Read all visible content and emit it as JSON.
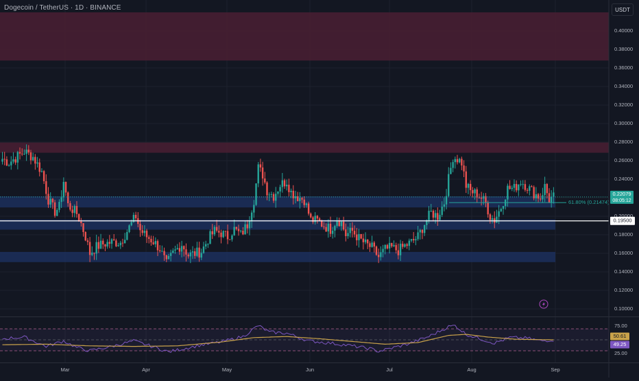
{
  "header": {
    "title": "Dogecoin / TetherUS · 1D · BINANCE",
    "currency": "USDT"
  },
  "colors": {
    "background": "#131722",
    "up": "#26a69a",
    "down": "#ef5350",
    "resistance_zone": "#4a1f32",
    "support_zone": "#1c2d59",
    "rsi_line": "#7e57c2",
    "rsi_ma": "#c9a24a",
    "fib": "#26a69a"
  },
  "chart_data": [
    {
      "type": "candlestick",
      "title": "Dogecoin / TetherUS · 1D · BINANCE",
      "y_ticks": [
        "0.40000",
        "0.38000",
        "0.36000",
        "0.34000",
        "0.32000",
        "0.30000",
        "0.28000",
        "0.26000",
        "0.24000",
        "0.22000",
        "0.20000",
        "0.18000",
        "0.16000",
        "0.14000",
        "0.12000",
        "0.10000"
      ],
      "x_ticks": [
        "Mar",
        "Apr",
        "May",
        "Jun",
        "Jul",
        "Aug",
        "Sep"
      ],
      "ylim": [
        0.09,
        0.42
      ],
      "grid": true,
      "current_price": {
        "value": "0.22079",
        "countdown": "08:05:12"
      },
      "horizontal_line": {
        "value": "0.19500"
      },
      "fib_label": "61.80% (0.21474)",
      "zones": [
        {
          "kind": "resistance",
          "from": 0.368,
          "to": 0.42
        },
        {
          "kind": "resistance",
          "from": 0.2685,
          "to": 0.2795
        },
        {
          "kind": "support",
          "from": 0.2095,
          "to": 0.2215
        },
        {
          "kind": "support",
          "from": 0.1855,
          "to": 0.1965
        },
        {
          "kind": "support",
          "from": 0.1505,
          "to": 0.1615
        }
      ],
      "price_anchors": [
        [
          0,
          0.262
        ],
        [
          3,
          0.258
        ],
        [
          6,
          0.263
        ],
        [
          10,
          0.27
        ],
        [
          14,
          0.264
        ],
        [
          18,
          0.248
        ],
        [
          21,
          0.218
        ],
        [
          24,
          0.205
        ],
        [
          26,
          0.21
        ],
        [
          28,
          0.238
        ],
        [
          30,
          0.212
        ],
        [
          34,
          0.203
        ],
        [
          36,
          0.192
        ],
        [
          38,
          0.178
        ],
        [
          40,
          0.16
        ],
        [
          43,
          0.167
        ],
        [
          46,
          0.17
        ],
        [
          50,
          0.172
        ],
        [
          54,
          0.172
        ],
        [
          58,
          0.188
        ],
        [
          61,
          0.2
        ],
        [
          63,
          0.185
        ],
        [
          66,
          0.178
        ],
        [
          69,
          0.173
        ],
        [
          72,
          0.165
        ],
        [
          75,
          0.148
        ],
        [
          78,
          0.16
        ],
        [
          82,
          0.17
        ],
        [
          85,
          0.158
        ],
        [
          88,
          0.16
        ],
        [
          91,
          0.162
        ],
        [
          94,
          0.175
        ],
        [
          97,
          0.184
        ],
        [
          100,
          0.182
        ],
        [
          103,
          0.178
        ],
        [
          106,
          0.186
        ],
        [
          109,
          0.18
        ],
        [
          112,
          0.191
        ],
        [
          115,
          0.218
        ],
        [
          117,
          0.252
        ],
        [
          119,
          0.245
        ],
        [
          121,
          0.228
        ],
        [
          124,
          0.222
        ],
        [
          127,
          0.234
        ],
        [
          130,
          0.238
        ],
        [
          132,
          0.226
        ],
        [
          135,
          0.221
        ],
        [
          138,
          0.218
        ],
        [
          141,
          0.196
        ],
        [
          144,
          0.195
        ],
        [
          147,
          0.19
        ],
        [
          150,
          0.186
        ],
        [
          153,
          0.197
        ],
        [
          155,
          0.193
        ],
        [
          157,
          0.18
        ],
        [
          160,
          0.184
        ],
        [
          163,
          0.176
        ],
        [
          166,
          0.17
        ],
        [
          169,
          0.166
        ],
        [
          172,
          0.156
        ],
        [
          175,
          0.164
        ],
        [
          178,
          0.166
        ],
        [
          181,
          0.163
        ],
        [
          184,
          0.168
        ],
        [
          187,
          0.172
        ],
        [
          190,
          0.178
        ],
        [
          193,
          0.192
        ],
        [
          196,
          0.204
        ],
        [
          199,
          0.2
        ],
        [
          202,
          0.215
        ],
        [
          204,
          0.24
        ],
        [
          206,
          0.264
        ],
        [
          208,
          0.262
        ],
        [
          210,
          0.258
        ],
        [
          212,
          0.233
        ],
        [
          214,
          0.227
        ],
        [
          217,
          0.224
        ],
        [
          219,
          0.22
        ],
        [
          221,
          0.214
        ],
        [
          223,
          0.2
        ],
        [
          225,
          0.196
        ],
        [
          228,
          0.21
        ],
        [
          231,
          0.23
        ],
        [
          234,
          0.23
        ],
        [
          237,
          0.238
        ],
        [
          240,
          0.232
        ],
        [
          243,
          0.225
        ],
        [
          246,
          0.22
        ],
        [
          248,
          0.232
        ],
        [
          250,
          0.218
        ],
        [
          252,
          0.221
        ]
      ]
    },
    {
      "type": "line",
      "title": "RSI",
      "y_ticks": [
        "75.00",
        "25.00"
      ],
      "ylim": [
        10,
        90
      ],
      "bands": {
        "upper": 70,
        "middle": 50,
        "lower": 30
      },
      "series": [
        {
          "values_anchors": [
            [
              0,
              52
            ],
            [
              10,
              55
            ],
            [
              20,
              38
            ],
            [
              28,
              48
            ],
            [
              34,
              36
            ],
            [
              40,
              30
            ],
            [
              50,
              38
            ],
            [
              60,
              48
            ],
            [
              70,
              36
            ],
            [
              76,
              28
            ],
            [
              90,
              40
            ],
            [
              100,
              46
            ],
            [
              110,
              56
            ],
            [
              117,
              76
            ],
            [
              122,
              64
            ],
            [
              130,
              62
            ],
            [
              140,
              48
            ],
            [
              150,
              44
            ],
            [
              158,
              40
            ],
            [
              168,
              34
            ],
            [
              172,
              29
            ],
            [
              185,
              42
            ],
            [
              195,
              56
            ],
            [
              204,
              74
            ],
            [
              207,
              76
            ],
            [
              212,
              60
            ],
            [
              220,
              50
            ],
            [
              225,
              44
            ],
            [
              232,
              54
            ],
            [
              240,
              53
            ],
            [
              246,
              48
            ],
            [
              252,
              50
            ]
          ],
          "last": "49.25"
        },
        {
          "values_anchors": [
            [
              0,
              41
            ],
            [
              20,
              42
            ],
            [
              40,
              39
            ],
            [
              60,
              38
            ],
            [
              80,
              39
            ],
            [
              100,
              46
            ],
            [
              115,
              54
            ],
            [
              130,
              56
            ],
            [
              145,
              52
            ],
            [
              160,
              47
            ],
            [
              175,
              42
            ],
            [
              190,
              45
            ],
            [
              204,
              58
            ],
            [
              212,
              60
            ],
            [
              222,
              55
            ],
            [
              235,
              51
            ],
            [
              252,
              50
            ]
          ],
          "last": "50.61"
        }
      ]
    }
  ]
}
